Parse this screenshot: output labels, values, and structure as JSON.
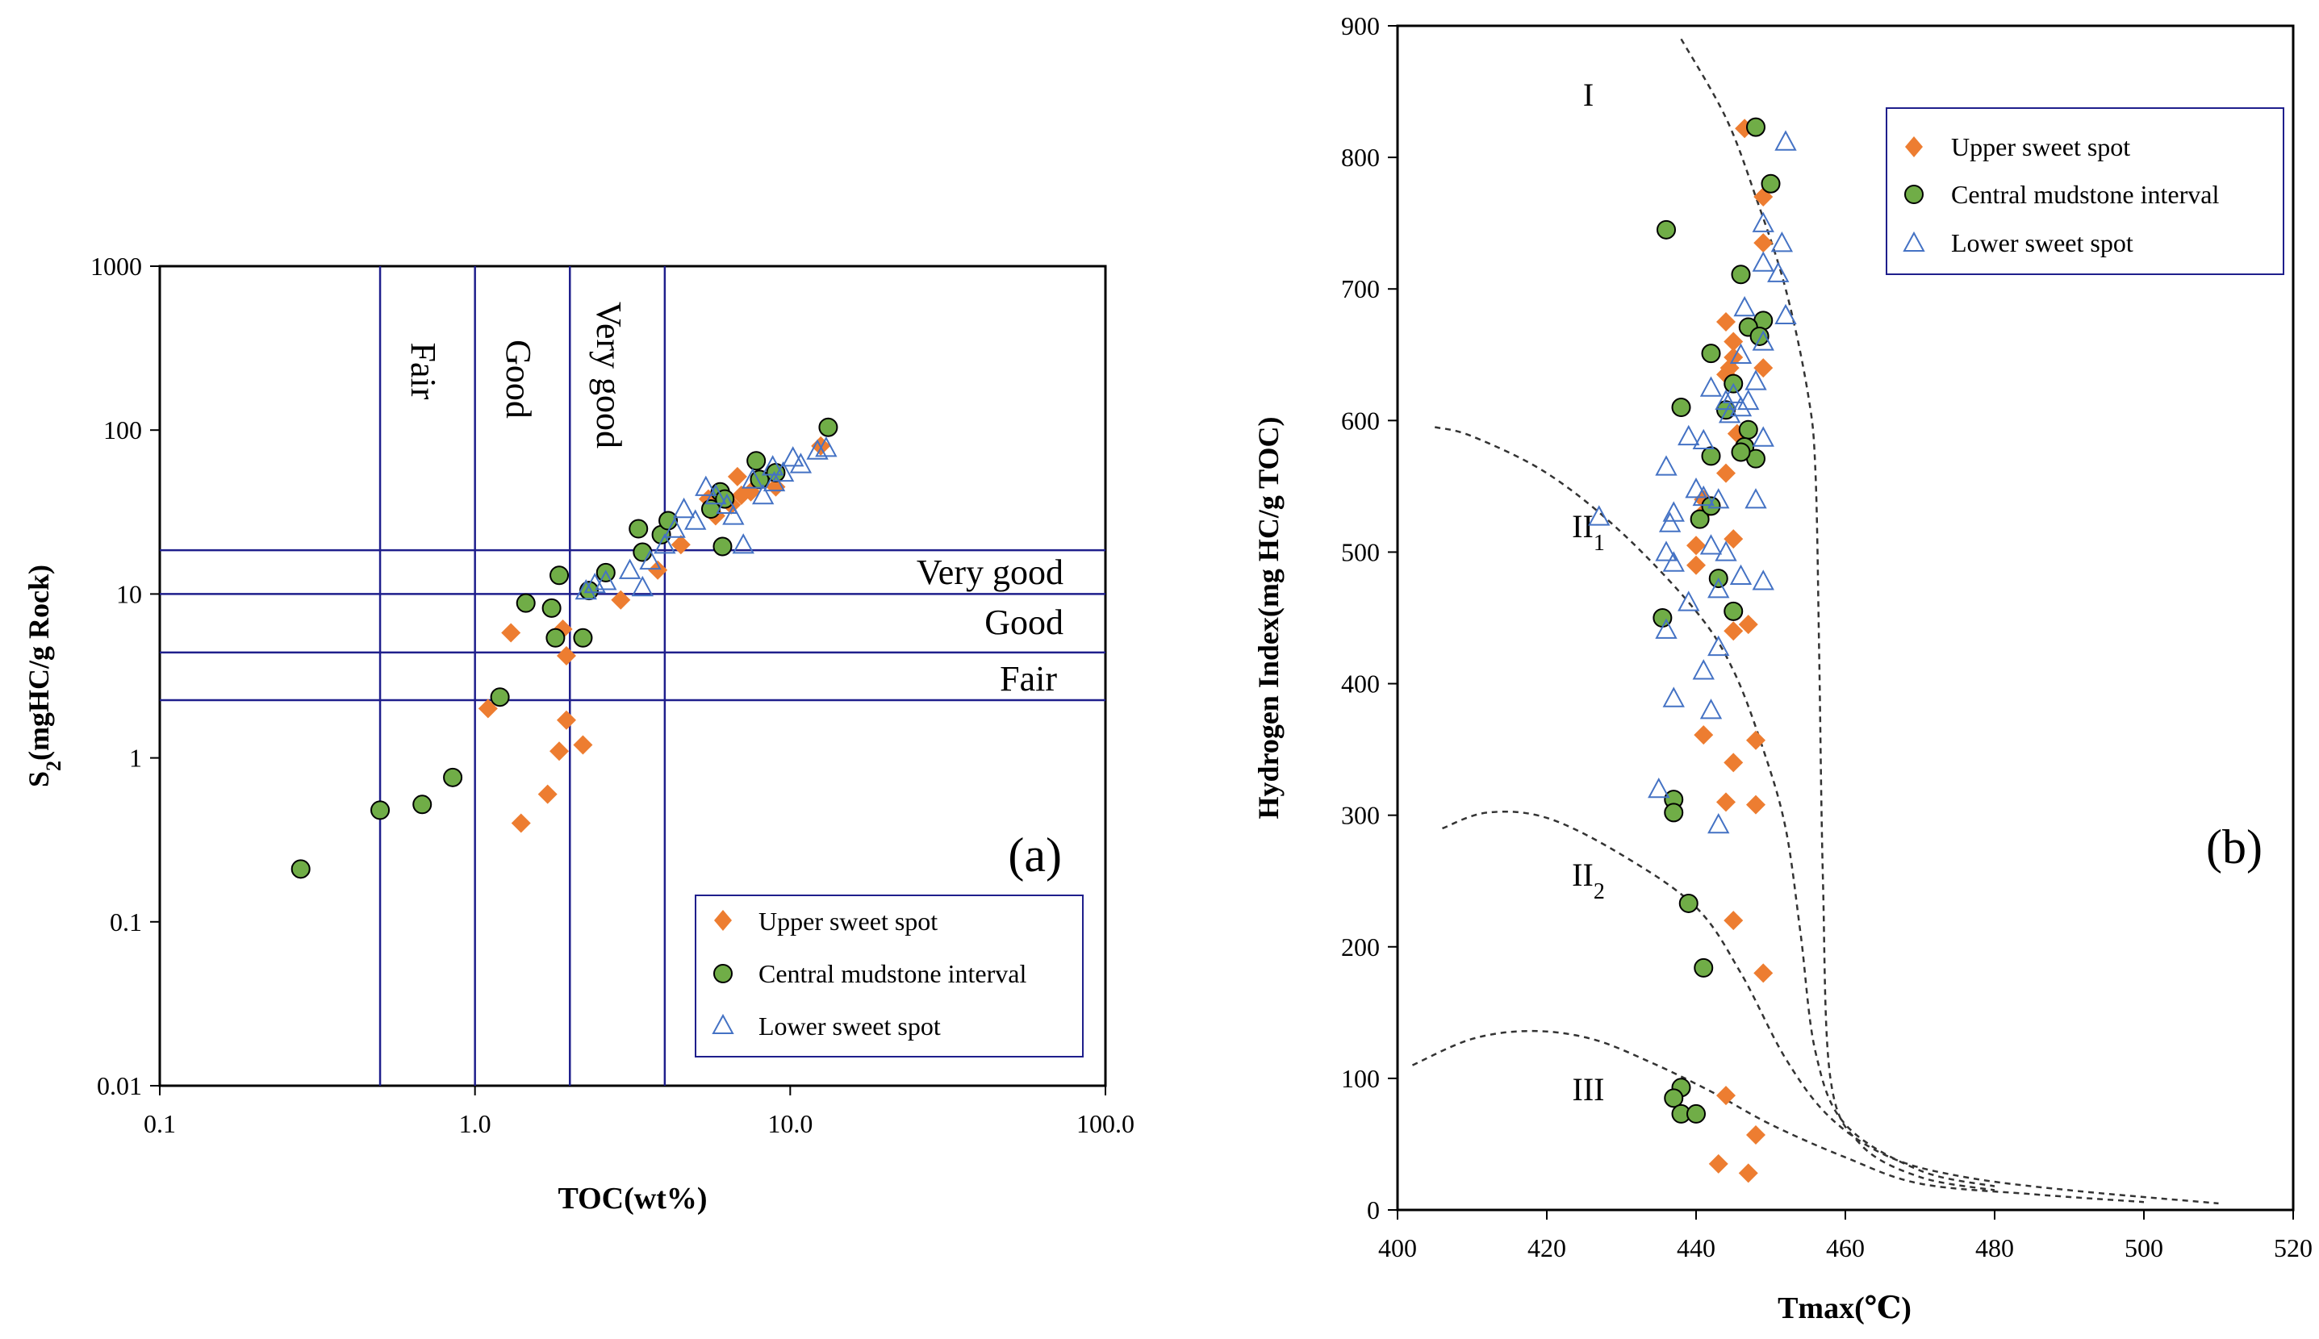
{
  "colors": {
    "upper": "#ED7D31",
    "central": "#70AD47",
    "lower": "#4472C4",
    "grid": "#1F1F8C",
    "axis": "#000000"
  },
  "legend": {
    "upper": "Upper sweet spot",
    "central": "Central mudstone interval",
    "lower": "Lower sweet spot"
  },
  "chart_data": [
    {
      "type": "scatter",
      "panel_label": "(a)",
      "xlabel": "TOC(wt%)",
      "ylabel_main": "S",
      "ylabel_sub": "2",
      "ylabel_rest": "(mgHC/g Rock)",
      "x_scale": "log",
      "y_scale": "log",
      "xlim": [
        0.1,
        100
      ],
      "ylim": [
        0.01,
        1000
      ],
      "x_ticks": [
        0.1,
        1,
        10,
        100
      ],
      "x_tick_labels": [
        "0.1",
        "1.0",
        "10.0",
        "100.0"
      ],
      "y_ticks": [
        0.01,
        0.1,
        1,
        10,
        100,
        1000
      ],
      "y_tick_labels": [
        "0.01",
        "0.1",
        "1",
        "10",
        "100",
        "1000"
      ],
      "toc_boundaries": [
        0.5,
        1,
        2,
        4
      ],
      "s2_boundaries": [
        2.25,
        4.4,
        10,
        18.5
      ],
      "toc_zone_labels": [
        "Fair",
        "Good",
        "Very good"
      ],
      "s2_zone_labels": [
        "Fair",
        "Good",
        "Very good"
      ],
      "legend_position": "bottom-right",
      "series": [
        {
          "name": "Upper sweet spot",
          "marker": "diamond",
          "points": [
            [
              1.3,
              5.8
            ],
            [
              1.9,
              6.1
            ],
            [
              1.95,
              4.2
            ],
            [
              1.1,
              2.0
            ],
            [
              1.95,
              1.7
            ],
            [
              1.85,
              1.1
            ],
            [
              2.2,
              1.2
            ],
            [
              1.7,
              0.6
            ],
            [
              1.4,
              0.4
            ],
            [
              2.9,
              9.2
            ],
            [
              3.8,
              14
            ],
            [
              4.5,
              20
            ],
            [
              5.8,
              30
            ],
            [
              6.5,
              35
            ],
            [
              6.8,
              52
            ],
            [
              7.5,
              42
            ],
            [
              9.0,
              45
            ],
            [
              12.5,
              80
            ],
            [
              5.5,
              38
            ],
            [
              7.0,
              40
            ]
          ]
        },
        {
          "name": "Central mudstone interval",
          "marker": "circle",
          "points": [
            [
              0.28,
              0.21
            ],
            [
              0.5,
              0.48
            ],
            [
              0.68,
              0.52
            ],
            [
              0.85,
              0.76
            ],
            [
              1.2,
              2.35
            ],
            [
              1.45,
              8.8
            ],
            [
              1.8,
              5.4
            ],
            [
              1.75,
              8.2
            ],
            [
              1.85,
              13
            ],
            [
              2.2,
              5.4
            ],
            [
              2.3,
              10.5
            ],
            [
              2.6,
              13.5
            ],
            [
              3.3,
              25
            ],
            [
              3.4,
              18
            ],
            [
              3.9,
              23
            ],
            [
              4.1,
              28
            ],
            [
              5.6,
              33
            ],
            [
              6.0,
              42
            ],
            [
              6.2,
              38
            ],
            [
              6.1,
              19.5
            ],
            [
              7.8,
              65
            ],
            [
              8.0,
              50
            ],
            [
              9.0,
              55
            ],
            [
              13.2,
              104
            ]
          ]
        },
        {
          "name": "Lower sweet spot",
          "marker": "triangle",
          "points": [
            [
              2.25,
              10.5
            ],
            [
              2.4,
              11.5
            ],
            [
              2.6,
              12
            ],
            [
              3.1,
              14
            ],
            [
              3.4,
              11
            ],
            [
              3.6,
              16
            ],
            [
              4.0,
              20
            ],
            [
              4.3,
              25
            ],
            [
              4.6,
              33
            ],
            [
              5.0,
              28
            ],
            [
              5.4,
              45
            ],
            [
              5.8,
              40
            ],
            [
              6.3,
              35
            ],
            [
              7.1,
              20
            ],
            [
              7.6,
              50
            ],
            [
              8.2,
              40
            ],
            [
              8.8,
              60
            ],
            [
              9.5,
              55
            ],
            [
              10.2,
              68
            ],
            [
              10.8,
              62
            ],
            [
              12.2,
              75
            ],
            [
              13.0,
              78
            ],
            [
              6.6,
              30
            ],
            [
              8.9,
              48
            ]
          ]
        }
      ]
    },
    {
      "type": "scatter",
      "panel_label": "(b)",
      "xlabel": "Tmax(℃)",
      "ylabel": "Hydrogen Index(mg HC/g TOC)",
      "xlim": [
        400,
        520
      ],
      "ylim": [
        0,
        900
      ],
      "x_ticks": [
        400,
        420,
        440,
        460,
        480,
        500,
        520
      ],
      "y_ticks": [
        0,
        100,
        200,
        300,
        400,
        500,
        600,
        700,
        800,
        900
      ],
      "zone_labels": [
        {
          "main": "I",
          "sub": "",
          "x": 418,
          "y": 848
        },
        {
          "main": "II",
          "sub": "1",
          "x": 418,
          "y": 520
        },
        {
          "main": "II",
          "sub": "2",
          "x": 418,
          "y": 255
        },
        {
          "main": "III",
          "sub": "",
          "x": 418,
          "y": 92
        }
      ],
      "boundary_curves": [
        [
          [
            438,
            890
          ],
          [
            444,
            830
          ],
          [
            448,
            770
          ],
          [
            452,
            700
          ],
          [
            455,
            620
          ],
          [
            456,
            560
          ],
          [
            456.5,
            420
          ],
          [
            457,
            250
          ],
          [
            458,
            100
          ],
          [
            462,
            50
          ],
          [
            470,
            25
          ],
          [
            480,
            15
          ]
        ],
        [
          [
            405,
            595
          ],
          [
            410,
            588
          ],
          [
            420,
            560
          ],
          [
            430,
            515
          ],
          [
            440,
            455
          ],
          [
            445,
            410
          ],
          [
            449,
            350
          ],
          [
            452,
            290
          ],
          [
            454,
            210
          ],
          [
            456,
            120
          ],
          [
            460,
            65
          ],
          [
            470,
            30
          ],
          [
            480,
            18
          ]
        ],
        [
          [
            406,
            290
          ],
          [
            412,
            302
          ],
          [
            420,
            298
          ],
          [
            430,
            270
          ],
          [
            440,
            230
          ],
          [
            446,
            180
          ],
          [
            452,
            115
          ],
          [
            458,
            70
          ],
          [
            466,
            40
          ],
          [
            476,
            25
          ],
          [
            490,
            15
          ],
          [
            510,
            5
          ]
        ],
        [
          [
            402,
            110
          ],
          [
            410,
            130
          ],
          [
            418,
            136
          ],
          [
            426,
            130
          ],
          [
            434,
            112
          ],
          [
            442,
            90
          ],
          [
            450,
            65
          ],
          [
            460,
            40
          ],
          [
            470,
            20
          ],
          [
            485,
            12
          ],
          [
            500,
            6
          ]
        ]
      ],
      "legend_position": "top-right",
      "series": [
        {
          "name": "Upper sweet spot",
          "marker": "diamond",
          "points": [
            [
              446.5,
              822
            ],
            [
              449,
              770
            ],
            [
              449,
              735
            ],
            [
              444,
              675
            ],
            [
              445,
              660
            ],
            [
              445,
              648
            ],
            [
              444.5,
              640
            ],
            [
              449,
              640
            ],
            [
              444,
              635
            ],
            [
              445.5,
              590
            ],
            [
              444,
              560
            ],
            [
              441,
              540
            ],
            [
              441,
              530
            ],
            [
              440,
              505
            ],
            [
              445,
              510
            ],
            [
              440,
              490
            ],
            [
              445,
              440
            ],
            [
              447,
              445
            ],
            [
              441,
              361
            ],
            [
              448,
              357
            ],
            [
              445,
              340
            ],
            [
              444,
              310
            ],
            [
              448,
              308
            ],
            [
              445,
              220
            ],
            [
              449,
              180
            ],
            [
              444,
              87
            ],
            [
              448,
              57
            ],
            [
              443,
              35
            ],
            [
              447,
              28
            ]
          ]
        },
        {
          "name": "Central mudstone interval",
          "marker": "circle",
          "points": [
            [
              448,
              823
            ],
            [
              450,
              780
            ],
            [
              436,
              745
            ],
            [
              446,
              711
            ],
            [
              449,
              676
            ],
            [
              447,
              671
            ],
            [
              448.5,
              664
            ],
            [
              442,
              651
            ],
            [
              445,
              628
            ],
            [
              438,
              610
            ],
            [
              444,
              608
            ],
            [
              447,
              593
            ],
            [
              446.5,
              580
            ],
            [
              442,
              573
            ],
            [
              448,
              571
            ],
            [
              446,
              576
            ],
            [
              440.5,
              525
            ],
            [
              442,
              535
            ],
            [
              443,
              480
            ],
            [
              445,
              455
            ],
            [
              435.5,
              450
            ],
            [
              437,
              312
            ],
            [
              437,
              302
            ],
            [
              439,
              233
            ],
            [
              441,
              184
            ],
            [
              438,
              93
            ],
            [
              437,
              85
            ],
            [
              438,
              73
            ],
            [
              440,
              73
            ]
          ]
        },
        {
          "name": "Lower sweet spot",
          "marker": "triangle",
          "points": [
            [
              452,
              812
            ],
            [
              449,
              750
            ],
            [
              451.5,
              735
            ],
            [
              449,
              720
            ],
            [
              451,
              712
            ],
            [
              452,
              680
            ],
            [
              446.5,
              686
            ],
            [
              449,
              660
            ],
            [
              446,
              650
            ],
            [
              448,
              630
            ],
            [
              442,
              625
            ],
            [
              444,
              615
            ],
            [
              446,
              610
            ],
            [
              447,
              615
            ],
            [
              445,
              620
            ],
            [
              444.5,
              605
            ],
            [
              439,
              588
            ],
            [
              441,
              585
            ],
            [
              449,
              587
            ],
            [
              436,
              565
            ],
            [
              440,
              548
            ],
            [
              441,
              542
            ],
            [
              443,
              540
            ],
            [
              448,
              540
            ],
            [
              437,
              530
            ],
            [
              436.5,
              522
            ],
            [
              427,
              527
            ],
            [
              436,
              500
            ],
            [
              437,
              492
            ],
            [
              442,
              505
            ],
            [
              444,
              500
            ],
            [
              446,
              482
            ],
            [
              449,
              478
            ],
            [
              443,
              472
            ],
            [
              439,
              462
            ],
            [
              436,
              441
            ],
            [
              441,
              410
            ],
            [
              443,
              428
            ],
            [
              437,
              389
            ],
            [
              442,
              380
            ],
            [
              435,
              320
            ],
            [
              443,
              293
            ]
          ]
        }
      ]
    }
  ]
}
